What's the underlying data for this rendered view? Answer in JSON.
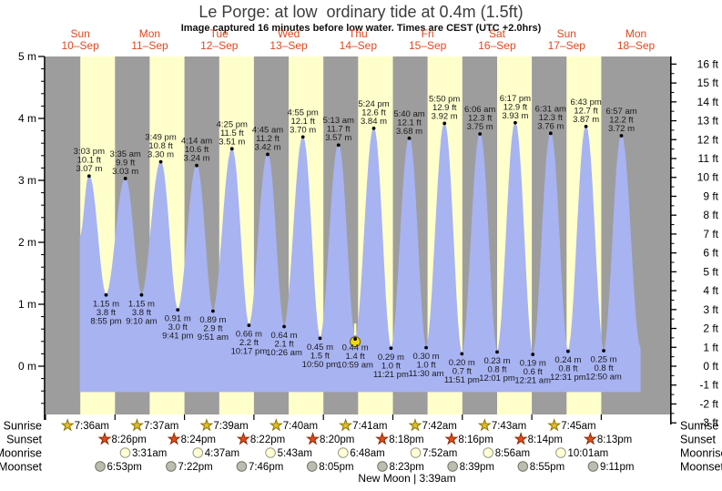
{
  "title": "Le Porge: at low  ordinary tide at 0.4m (1.5ft)",
  "subtitle": "Image captured 16 minutes before low water. Times are CEST (UTC +2.0hrs)",
  "colors": {
    "night_band": "#9d9d9d",
    "day_band": "#ffffcc",
    "water": "#a8b3f2",
    "day_label": "#e2471e",
    "marker": "#f0d800",
    "sunrise_icon": "#dfbe2e",
    "sunset_icon": "#e04d1b",
    "moonrise_icon": "#ffffd6",
    "moonset_icon": "#bcbcb0"
  },
  "days": [
    {
      "dow": "Sun",
      "date": "10–Sep"
    },
    {
      "dow": "Mon",
      "date": "11–Sep"
    },
    {
      "dow": "Tue",
      "date": "12–Sep"
    },
    {
      "dow": "Wed",
      "date": "13–Sep"
    },
    {
      "dow": "Thu",
      "date": "14–Sep"
    },
    {
      "dow": "Fri",
      "date": "15–Sep"
    },
    {
      "dow": "Sat",
      "date": "16–Sep"
    },
    {
      "dow": "Sun",
      "date": "17–Sep"
    },
    {
      "dow": "Mon",
      "date": "18–Sep"
    }
  ],
  "axes": {
    "left": [
      {
        "v": 5,
        "label": "5 m"
      },
      {
        "v": 4,
        "label": "4 m"
      },
      {
        "v": 3,
        "label": "3 m"
      },
      {
        "v": 2,
        "label": "2 m"
      },
      {
        "v": 1,
        "label": "1 m"
      },
      {
        "v": 0,
        "label": "0 m"
      }
    ],
    "right": [
      {
        "v": 16,
        "label": "16 ft"
      },
      {
        "v": 15,
        "label": "15 ft"
      },
      {
        "v": 14,
        "label": "14 ft"
      },
      {
        "v": 13,
        "label": "13 ft"
      },
      {
        "v": 12,
        "label": "12 ft"
      },
      {
        "v": 11,
        "label": "11 ft"
      },
      {
        "v": 10,
        "label": "10 ft"
      },
      {
        "v": 9,
        "label": "9 ft"
      },
      {
        "v": 8,
        "label": "8 ft"
      },
      {
        "v": 7,
        "label": "7 ft"
      },
      {
        "v": 6,
        "label": "6 ft"
      },
      {
        "v": 5,
        "label": "5 ft"
      },
      {
        "v": 4,
        "label": "4 ft"
      },
      {
        "v": 3,
        "label": "3 ft"
      },
      {
        "v": 2,
        "label": "2 ft"
      },
      {
        "v": 1,
        "label": "1 ft"
      },
      {
        "v": 0,
        "label": "0 ft"
      },
      {
        "v": -1,
        "label": "-1 ft"
      },
      {
        "v": -2,
        "label": "-2 ft"
      },
      {
        "v": -3,
        "label": "-3 ft"
      }
    ]
  },
  "chart_data": {
    "type": "area",
    "y_unit_left": "m",
    "y_unit_right": "ft",
    "floor_meters": -0.41,
    "edge_start": {
      "day": 0,
      "hour": 12.0,
      "meters": 2.1
    },
    "edge_end": {
      "day": 8,
      "hour": 13.43,
      "meters": 0.3
    },
    "highs": [
      {
        "day": 0,
        "hour": 15.05,
        "time": "3:03 pm",
        "ft": "10.1 ft",
        "m": "3.07 m",
        "meters": 3.07
      },
      {
        "day": 1,
        "hour": 3.583,
        "time": "3:35 am",
        "ft": "9.9 ft",
        "m": "3.03 m",
        "meters": 3.03
      },
      {
        "day": 1,
        "hour": 15.817,
        "time": "3:49 pm",
        "ft": "10.8 ft",
        "m": "3.30 m",
        "meters": 3.3
      },
      {
        "day": 2,
        "hour": 4.233,
        "time": "4:14 am",
        "ft": "10.6 ft",
        "m": "3.24 m",
        "meters": 3.24
      },
      {
        "day": 2,
        "hour": 16.417,
        "time": "4:25 pm",
        "ft": "11.5 ft",
        "m": "3.51 m",
        "meters": 3.51
      },
      {
        "day": 3,
        "hour": 4.75,
        "time": "4:45 am",
        "ft": "11.2 ft",
        "m": "3.42 m",
        "meters": 3.42
      },
      {
        "day": 3,
        "hour": 16.917,
        "time": "4:55 pm",
        "ft": "12.1 ft",
        "m": "3.70 m",
        "meters": 3.7
      },
      {
        "day": 4,
        "hour": 5.217,
        "time": "5:13 am",
        "ft": "11.7 ft",
        "m": "3.57 m",
        "meters": 3.57
      },
      {
        "day": 4,
        "hour": 17.4,
        "time": "5:24 pm",
        "ft": "12.6 ft",
        "m": "3.84 m",
        "meters": 3.84
      },
      {
        "day": 5,
        "hour": 5.667,
        "time": "5:40 am",
        "ft": "12.1 ft",
        "m": "3.68 m",
        "meters": 3.68
      },
      {
        "day": 5,
        "hour": 17.833,
        "time": "5:50 pm",
        "ft": "12.9 ft",
        "m": "3.92 m",
        "meters": 3.92
      },
      {
        "day": 6,
        "hour": 6.1,
        "time": "6:06 am",
        "ft": "12.3 ft",
        "m": "3.75 m",
        "meters": 3.75
      },
      {
        "day": 6,
        "hour": 18.283,
        "time": "6:17 pm",
        "ft": "12.9 ft",
        "m": "3.93 m",
        "meters": 3.93
      },
      {
        "day": 7,
        "hour": 6.517,
        "time": "6:31 am",
        "ft": "12.3 ft",
        "m": "3.76 m",
        "meters": 3.76
      },
      {
        "day": 7,
        "hour": 18.717,
        "time": "6:43 pm",
        "ft": "12.7 ft",
        "m": "3.87 m",
        "meters": 3.87
      },
      {
        "day": 8,
        "hour": 6.95,
        "time": "6:57 am",
        "ft": "12.2 ft",
        "m": "3.72 m",
        "meters": 3.72
      }
    ],
    "lows": [
      {
        "day": 0,
        "hour": 20.917,
        "time": "8:55 pm",
        "ft": "3.8 ft",
        "m": "1.15 m",
        "meters": 1.15
      },
      {
        "day": 1,
        "hour": 9.167,
        "time": "9:10 am",
        "ft": "3.8 ft",
        "m": "1.15 m",
        "meters": 1.15
      },
      {
        "day": 1,
        "hour": 21.683,
        "time": "9:41 pm",
        "ft": "3.0 ft",
        "m": "0.91 m",
        "meters": 0.91
      },
      {
        "day": 2,
        "hour": 9.85,
        "time": "9:51 am",
        "ft": "2.9 ft",
        "m": "0.89 m",
        "meters": 0.89
      },
      {
        "day": 2,
        "hour": 22.283,
        "time": "10:17 pm",
        "ft": "2.2 ft",
        "m": "0.66 m",
        "meters": 0.66
      },
      {
        "day": 3,
        "hour": 10.433,
        "time": "10:26 am",
        "ft": "2.1 ft",
        "m": "0.64 m",
        "meters": 0.64
      },
      {
        "day": 3,
        "hour": 22.833,
        "time": "10:50 pm",
        "ft": "1.5 ft",
        "m": "0.45 m",
        "meters": 0.45
      },
      {
        "day": 4,
        "hour": 10.983,
        "time": "10:59 am",
        "ft": "1.4 ft",
        "m": "0.44 m",
        "meters": 0.44,
        "capture": true
      },
      {
        "day": 4,
        "hour": 23.35,
        "time": "11:21 pm",
        "ft": "1.0 ft",
        "m": "0.29 m",
        "meters": 0.29
      },
      {
        "day": 5,
        "hour": 11.5,
        "time": "11:30 am",
        "ft": "1.0 ft",
        "m": "0.30 m",
        "meters": 0.3
      },
      {
        "day": 5,
        "hour": 23.85,
        "time": "11:51 pm",
        "ft": "0.7 ft",
        "m": "0.20 m",
        "meters": 0.2
      },
      {
        "day": 6,
        "hour": 12.017,
        "time": "12:01 pm",
        "ft": "0.8 ft",
        "m": "0.23 m",
        "meters": 0.23
      },
      {
        "day": 7,
        "hour": 0.35,
        "time": "12:21 am",
        "ft": "0.6 ft",
        "m": "0.19 m",
        "meters": 0.19
      },
      {
        "day": 7,
        "hour": 12.517,
        "time": "12:31 pm",
        "ft": "0.8 ft",
        "m": "0.24 m",
        "meters": 0.24
      },
      {
        "day": 8,
        "hour": 0.833,
        "time": "12:50 am",
        "ft": "0.8 ft",
        "m": "0.25 m",
        "meters": 0.25
      }
    ]
  },
  "astro": {
    "sunrise": {
      "label": "Sunrise",
      "events": [
        {
          "day": 0,
          "hour": 7.6,
          "time": "7:36am"
        },
        {
          "day": 1,
          "hour": 7.617,
          "time": "7:37am"
        },
        {
          "day": 2,
          "hour": 7.65,
          "time": "7:39am"
        },
        {
          "day": 3,
          "hour": 7.667,
          "time": "7:40am"
        },
        {
          "day": 4,
          "hour": 7.683,
          "time": "7:41am"
        },
        {
          "day": 5,
          "hour": 7.7,
          "time": "7:42am"
        },
        {
          "day": 6,
          "hour": 7.717,
          "time": "7:43am"
        },
        {
          "day": 7,
          "hour": 7.75,
          "time": "7:45am"
        }
      ]
    },
    "sunset": {
      "label": "Sunset",
      "events": [
        {
          "day": 0,
          "hour": 20.433,
          "time": "8:26pm"
        },
        {
          "day": 1,
          "hour": 20.4,
          "time": "8:24pm"
        },
        {
          "day": 2,
          "hour": 20.367,
          "time": "8:22pm"
        },
        {
          "day": 3,
          "hour": 20.333,
          "time": "8:20pm"
        },
        {
          "day": 4,
          "hour": 20.3,
          "time": "8:18pm"
        },
        {
          "day": 5,
          "hour": 20.267,
          "time": "8:16pm"
        },
        {
          "day": 6,
          "hour": 20.233,
          "time": "8:14pm"
        },
        {
          "day": 7,
          "hour": 20.217,
          "time": "8:13pm"
        }
      ]
    },
    "moonrise": {
      "label": "Moonrise",
      "events": [
        {
          "day": 1,
          "hour": 3.517,
          "time": "3:31am"
        },
        {
          "day": 2,
          "hour": 4.617,
          "time": "4:37am"
        },
        {
          "day": 3,
          "hour": 5.717,
          "time": "5:43am"
        },
        {
          "day": 4,
          "hour": 6.8,
          "time": "6:48am"
        },
        {
          "day": 5,
          "hour": 7.867,
          "time": "7:52am"
        },
        {
          "day": 6,
          "hour": 8.933,
          "time": "8:56am"
        },
        {
          "day": 7,
          "hour": 10.017,
          "time": "10:01am"
        }
      ]
    },
    "moonset": {
      "label": "Moonset",
      "events": [
        {
          "day": 0,
          "hour": 18.883,
          "time": "6:53pm"
        },
        {
          "day": 1,
          "hour": 19.367,
          "time": "7:22pm"
        },
        {
          "day": 2,
          "hour": 19.767,
          "time": "7:46pm"
        },
        {
          "day": 3,
          "hour": 20.083,
          "time": "8:05pm"
        },
        {
          "day": 4,
          "hour": 20.383,
          "time": "8:23pm"
        },
        {
          "day": 5,
          "hour": 20.65,
          "time": "8:39pm"
        },
        {
          "day": 6,
          "hour": 20.917,
          "time": "8:55pm"
        },
        {
          "day": 7,
          "hour": 21.183,
          "time": "9:11pm"
        }
      ]
    },
    "new_moon": "New Moon | 3:39am"
  }
}
